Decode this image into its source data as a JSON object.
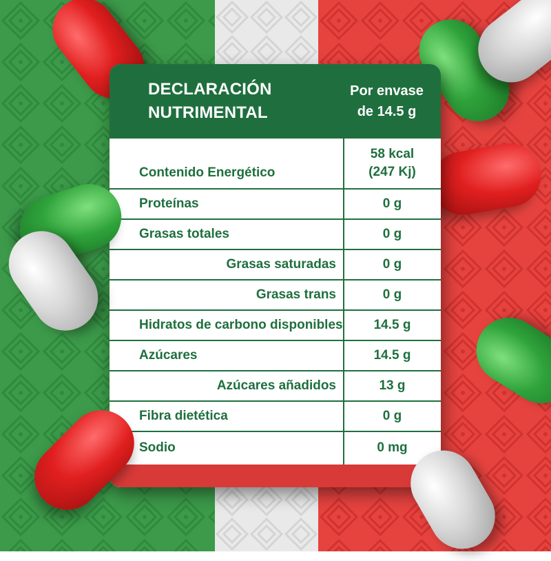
{
  "colors": {
    "green": "#3c9a4a",
    "white": "#e9e9e9",
    "red": "#e6433f",
    "header_green": "#1f6f3e"
  },
  "header": {
    "title_lines": [
      "DECLARACIÓN",
      "NUTRIMENTAL"
    ],
    "portion_lines": [
      "Por envase",
      "de 14.5 g"
    ]
  },
  "rows": [
    {
      "label": "Contenido Energético",
      "value_lines": [
        "58 kcal",
        "(247 Kj)"
      ]
    },
    {
      "label": "Proteínas",
      "value_lines": [
        "0 g"
      ]
    },
    {
      "label": "Grasas totales",
      "value_lines": [
        "0 g"
      ]
    },
    {
      "label": "Grasas saturadas",
      "value_lines": [
        "0 g"
      ]
    },
    {
      "label": "Grasas trans",
      "value_lines": [
        "0 g"
      ]
    },
    {
      "label": "Hidratos de carbono disponibles",
      "value_lines": [
        "14.5 g"
      ]
    },
    {
      "label": "Azúcares",
      "value_lines": [
        "14.5 g"
      ]
    },
    {
      "label": "Azúcares añadidos",
      "value_lines": [
        "13 g"
      ]
    },
    {
      "label": "Fibra dietética",
      "value_lines": [
        "0 g"
      ]
    },
    {
      "label": "Sodio",
      "value_lines": [
        "0 mg"
      ]
    }
  ]
}
